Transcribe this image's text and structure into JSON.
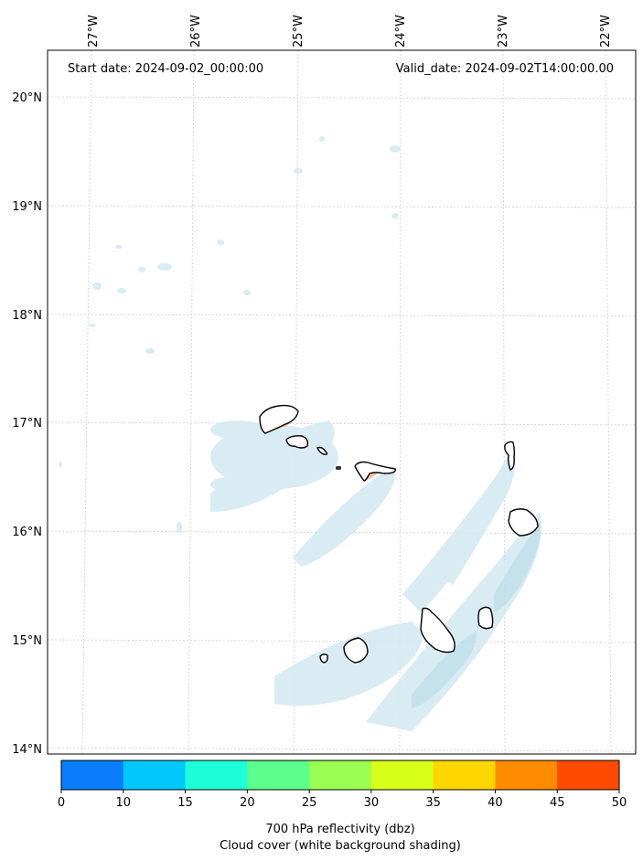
{
  "map": {
    "start_date_text": "Start date: 2024-09-02_00:00:00",
    "valid_date_text": "Valid_date: 2024-09-02T14:00:00.00",
    "lon_labels": [
      "27°W",
      "26°W",
      "25°W",
      "24°W",
      "23°W",
      "22°W"
    ],
    "lat_labels": [
      "20°N",
      "19°N",
      "18°N",
      "17°N",
      "16°N",
      "15°N",
      "14°N"
    ],
    "features": [
      "Cape Verde islands outline",
      "cloud cover shading",
      "700 hPa reflectivity"
    ]
  },
  "colorbar": {
    "ticks": [
      "0",
      "10",
      "15",
      "20",
      "25",
      "30",
      "35",
      "40",
      "45",
      "50"
    ],
    "colors": [
      "#0a7dfc",
      "#00c8fc",
      "#1effd8",
      "#5cff8c",
      "#9aff52",
      "#d8ff1a",
      "#ffd700",
      "#ff8c00",
      "#ff4a00"
    ],
    "label_line1": "700 hPa reflectivity (dbz)",
    "label_line2": "Cloud cover (white background shading)"
  }
}
